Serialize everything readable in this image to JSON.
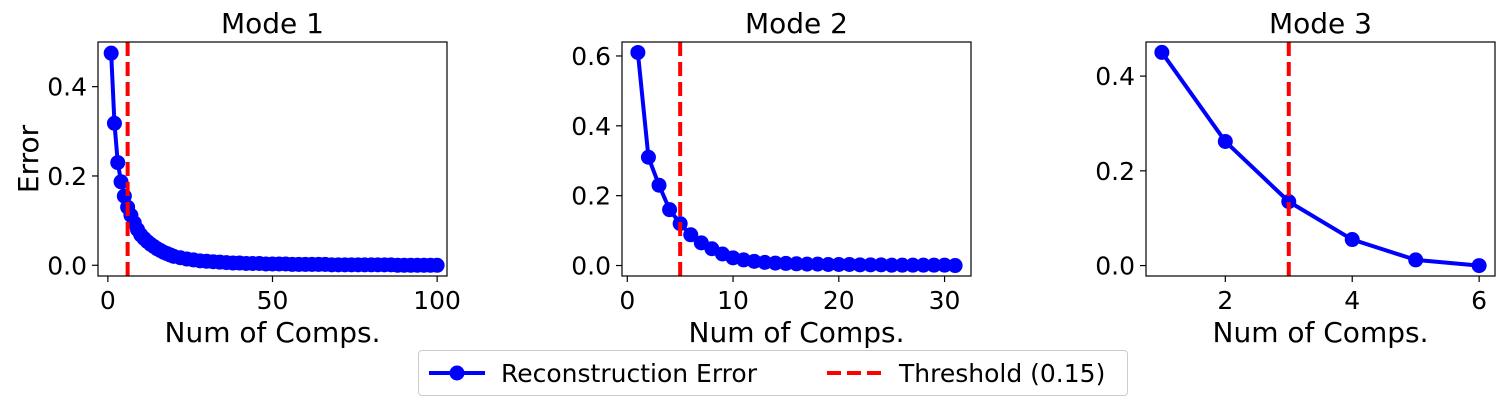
{
  "chart_data": [
    {
      "type": "line",
      "title": "Mode 1",
      "xlabel": "Num of Comps.",
      "ylabel": "Error",
      "xlim": [
        -3,
        103
      ],
      "ylim": [
        -0.024,
        0.5
      ],
      "xticks": [
        0,
        50,
        100
      ],
      "yticks": [
        0.0,
        0.2,
        0.4
      ],
      "threshold_x": 6,
      "series": [
        {
          "name": "Reconstruction Error",
          "x": [
            1,
            2,
            3,
            4,
            5,
            6,
            7,
            8,
            9,
            10,
            11,
            12,
            13,
            14,
            15,
            16,
            17,
            18,
            19,
            20,
            22,
            24,
            26,
            28,
            30,
            32,
            34,
            36,
            38,
            40,
            42,
            44,
            46,
            48,
            50,
            52,
            54,
            56,
            58,
            60,
            62,
            64,
            66,
            68,
            70,
            72,
            74,
            76,
            78,
            80,
            82,
            84,
            86,
            88,
            90,
            92,
            94,
            96,
            98,
            100
          ],
          "values": [
            0.475,
            0.318,
            0.23,
            0.187,
            0.155,
            0.13,
            0.112,
            0.095,
            0.08,
            0.068,
            0.06,
            0.053,
            0.047,
            0.042,
            0.037,
            0.033,
            0.029,
            0.026,
            0.023,
            0.02,
            0.017,
            0.014,
            0.012,
            0.01,
            0.009,
            0.008,
            0.007,
            0.006,
            0.005,
            0.005,
            0.004,
            0.004,
            0.004,
            0.003,
            0.003,
            0.003,
            0.003,
            0.002,
            0.002,
            0.002,
            0.002,
            0.002,
            0.002,
            0.001,
            0.001,
            0.001,
            0.001,
            0.001,
            0.001,
            0.001,
            0.001,
            0.001,
            0.001,
            0.0,
            0.0,
            0.0,
            0.0,
            0.0,
            0.0,
            0.0
          ]
        }
      ]
    },
    {
      "type": "line",
      "title": "Mode 2",
      "xlabel": "Num of Comps.",
      "ylabel": "",
      "xlim": [
        -0.5,
        32.5
      ],
      "ylim": [
        -0.03,
        0.64
      ],
      "xticks": [
        0,
        10,
        20,
        30
      ],
      "yticks": [
        0.0,
        0.2,
        0.4,
        0.6
      ],
      "threshold_x": 5,
      "series": [
        {
          "name": "Reconstruction Error",
          "x": [
            1,
            2,
            3,
            4,
            5,
            6,
            7,
            8,
            9,
            10,
            11,
            12,
            13,
            14,
            15,
            16,
            17,
            18,
            19,
            20,
            21,
            22,
            23,
            24,
            25,
            26,
            27,
            28,
            29,
            30,
            31
          ],
          "values": [
            0.61,
            0.31,
            0.23,
            0.16,
            0.12,
            0.088,
            0.065,
            0.048,
            0.033,
            0.022,
            0.016,
            0.012,
            0.009,
            0.007,
            0.006,
            0.005,
            0.004,
            0.004,
            0.003,
            0.003,
            0.003,
            0.002,
            0.002,
            0.002,
            0.001,
            0.001,
            0.001,
            0.001,
            0.001,
            0.001,
            0.0
          ]
        }
      ]
    },
    {
      "type": "line",
      "title": "Mode 3",
      "xlabel": "Num of Comps.",
      "ylabel": "",
      "xlim": [
        0.75,
        6.25
      ],
      "ylim": [
        -0.022,
        0.472
      ],
      "xticks": [
        2,
        4,
        6
      ],
      "yticks": [
        0.0,
        0.2,
        0.4
      ],
      "threshold_x": 3,
      "series": [
        {
          "name": "Reconstruction Error",
          "x": [
            1,
            2,
            3,
            4,
            5,
            6
          ],
          "values": [
            0.45,
            0.262,
            0.135,
            0.055,
            0.012,
            0.0
          ]
        }
      ]
    }
  ],
  "legend": {
    "placement": "bottom-center",
    "entries": [
      {
        "label": "Reconstruction Error",
        "color": "#0000ff",
        "style": "solid-line-with-circle-markers"
      },
      {
        "label": "Threshold (0.15)",
        "color": "#ff0000",
        "style": "dashed-line"
      }
    ]
  },
  "colors": {
    "series": "#0000ff",
    "threshold": "#ff0000"
  }
}
